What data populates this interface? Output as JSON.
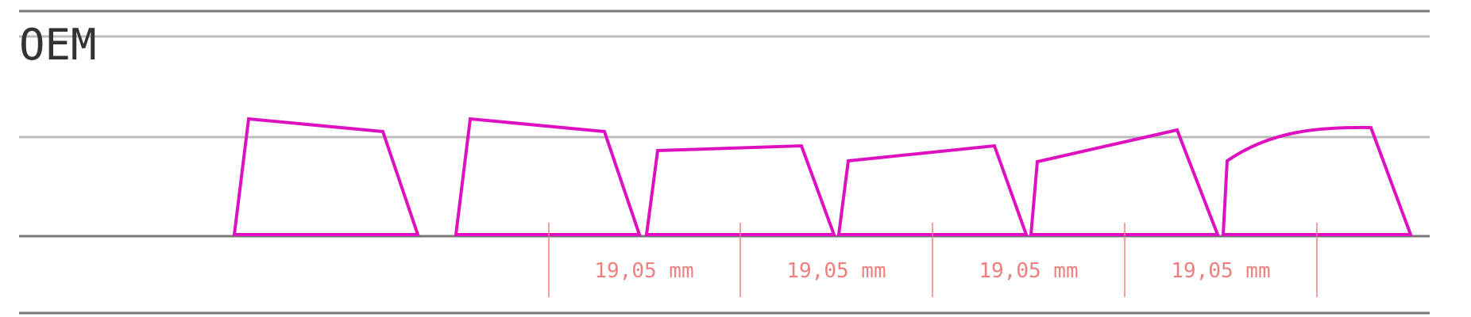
{
  "diagram": {
    "title": "OEM",
    "dimension_labels": [
      "19,05 mm",
      "19,05 mm",
      "19,05 mm",
      "19,05 mm"
    ],
    "colors": {
      "keycap_outline": "#dd11c0",
      "dimension": "#ee7f7f",
      "rule_dark": "#777777",
      "rule_light": "#bbbbbb",
      "title": "#333333"
    }
  }
}
